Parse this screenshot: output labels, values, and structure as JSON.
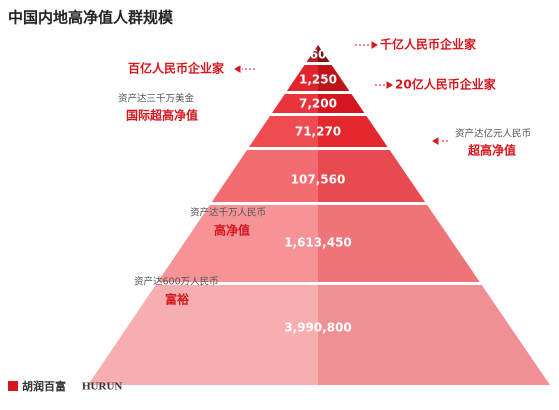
{
  "title": "中国内地高净值人群规模",
  "levels": [
    "60",
    "1,250",
    "7,200",
    "71,270",
    "107,560",
    "1,613,450",
    "3,990,800"
  ],
  "annotations": {
    "a1": {
      "label": "千亿人民币企业家"
    },
    "a2": {
      "label": "百亿人民币企业家"
    },
    "a3": {
      "label": "20亿人民币企业家"
    },
    "a4": {
      "sublabel": "资产达三千万美金",
      "label": "国际超高净值"
    },
    "a5": {
      "sublabel": "资产达亿元人民币",
      "label": "超高净值"
    },
    "a6": {
      "sublabel": "资产达千万人民币",
      "label": "高净值"
    },
    "a7": {
      "sublabel": "资产达600万人民币",
      "label": "富裕"
    }
  },
  "footer": {
    "logo_cn": "胡润百富",
    "logo_en": "HURUN"
  }
}
